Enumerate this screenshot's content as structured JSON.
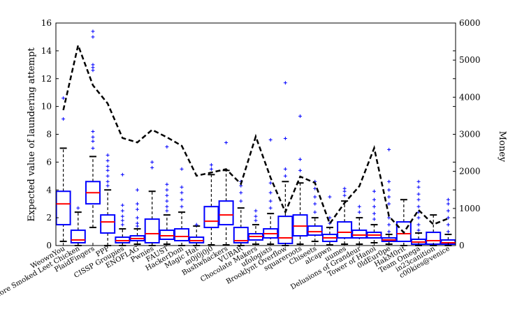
{
  "chart_data": {
    "type": "box",
    "ylabel": "Expected value of laundering attempt",
    "y2label": "Money",
    "ylim": [
      0,
      16
    ],
    "y2lim": [
      0,
      6000
    ],
    "yticks": [
      "0",
      "2",
      "4",
      "6",
      "8",
      "10",
      "12",
      "14",
      "16"
    ],
    "y2ticks": [
      "0",
      "1000",
      "2000",
      "3000",
      "4000",
      "5000",
      "6000"
    ],
    "grid": false,
    "colors": {
      "box": "#0000ff",
      "median": "#ff0000",
      "flier": "#0000ff",
      "whisker": "#000000",
      "money_line": "#000000"
    },
    "categories": [
      "WeownYou",
      "More Smoked Leet Chicken",
      "PlaidFingers",
      "PPP",
      "CISSP Groupies",
      "ENOFLAG",
      "Pwnies",
      "FAUST",
      "HackerDom",
      "Magic Hat",
      "m0j0j0j0",
      "Bushwhackers",
      "VUBAR",
      "Chocolate Makers",
      "ufologists",
      "Brooklynt Overflow",
      "squareroots",
      "Chiseets",
      "alcapwn",
      "uumes",
      "Delusions of Grandeur",
      "Tower of Hanoi",
      "0ldEur0pe",
      "HakM0rit",
      "Team Omega",
      "in23canition",
      "c00kies@venice"
    ],
    "boxes": [
      {
        "q1": 1.5,
        "median": 3.0,
        "q3": 3.9,
        "wlo": 0.3,
        "whi": 7.0,
        "fliers": [
          9.1,
          10.6
        ]
      },
      {
        "q1": 0.2,
        "median": 0.4,
        "q3": 1.1,
        "wlo": 0.0,
        "whi": 2.4,
        "fliers": [
          2.7
        ]
      },
      {
        "q1": 3.0,
        "median": 3.8,
        "q3": 4.6,
        "wlo": 1.3,
        "whi": 6.4,
        "fliers": [
          7.0,
          7.5,
          7.8,
          8.2,
          12.6,
          12.8,
          13.0,
          15.0,
          15.4
        ]
      },
      {
        "q1": 0.9,
        "median": 1.7,
        "q3": 2.2,
        "wlo": 0.0,
        "whi": 4.0,
        "fliers": [
          4.3,
          4.6,
          5.0,
          5.4,
          5.7,
          6.1,
          6.5
        ]
      },
      {
        "q1": 0.2,
        "median": 0.35,
        "q3": 0.6,
        "wlo": 0.0,
        "whi": 1.2,
        "fliers": [
          1.5,
          1.8,
          2.1,
          2.5,
          2.9,
          5.1
        ]
      },
      {
        "q1": 0.35,
        "median": 0.5,
        "q3": 0.7,
        "wlo": 0.1,
        "whi": 1.2,
        "fliers": [
          1.4,
          1.6,
          2.0,
          2.6,
          3.0,
          4.0
        ]
      },
      {
        "q1": 0.2,
        "median": 0.85,
        "q3": 1.9,
        "wlo": 0.0,
        "whi": 3.9,
        "fliers": [
          5.6,
          6.0
        ]
      },
      {
        "q1": 0.45,
        "median": 0.7,
        "q3": 1.1,
        "wlo": 0.1,
        "whi": 2.2,
        "fliers": [
          2.5,
          2.8,
          3.2,
          3.6,
          4.0,
          4.4,
          7.1
        ]
      },
      {
        "q1": 0.35,
        "median": 0.65,
        "q3": 1.2,
        "wlo": 0.0,
        "whi": 2.4,
        "fliers": [
          2.8,
          3.3,
          3.8,
          4.2,
          5.5
        ]
      },
      {
        "q1": 0.2,
        "median": 0.35,
        "q3": 0.6,
        "wlo": 0.0,
        "whi": 1.4,
        "fliers": [
          1.5
        ]
      },
      {
        "q1": 1.3,
        "median": 1.75,
        "q3": 2.8,
        "wlo": 0.05,
        "whi": 5.1,
        "fliers": [
          5.5,
          5.8
        ]
      },
      {
        "q1": 1.5,
        "median": 2.2,
        "q3": 3.2,
        "wlo": 0.05,
        "whi": 5.4,
        "fliers": [
          7.4
        ]
      },
      {
        "q1": 0.2,
        "median": 0.35,
        "q3": 1.3,
        "wlo": 0.0,
        "whi": 2.7,
        "fliers": [
          3.2,
          3.8,
          4.3,
          4.6
        ]
      },
      {
        "q1": 0.4,
        "median": 0.65,
        "q3": 0.85,
        "wlo": 0.1,
        "whi": 1.5,
        "fliers": [
          1.8,
          2.1,
          2.5
        ]
      },
      {
        "q1": 0.55,
        "median": 0.85,
        "q3": 1.2,
        "wlo": 0.1,
        "whi": 2.3,
        "fliers": [
          2.7,
          3.2,
          3.8,
          4.5,
          7.6
        ]
      },
      {
        "q1": 0.15,
        "median": 0.55,
        "q3": 2.1,
        "wlo": 0.0,
        "whi": 4.6,
        "fliers": [
          5.0,
          5.5,
          7.7,
          11.7
        ]
      },
      {
        "q1": 0.7,
        "median": 1.4,
        "q3": 2.2,
        "wlo": 0.1,
        "whi": 4.5,
        "fliers": [
          5.4,
          6.2,
          9.3
        ]
      },
      {
        "q1": 0.75,
        "median": 1.0,
        "q3": 1.4,
        "wlo": 0.3,
        "whi": 2.0,
        "fliers": [
          2.4,
          3.0,
          3.5,
          4.1,
          4.6
        ]
      },
      {
        "q1": 0.3,
        "median": 0.55,
        "q3": 0.8,
        "wlo": 0.05,
        "whi": 1.3,
        "fliers": [
          1.6,
          2.0,
          3.5
        ]
      },
      {
        "q1": 0.55,
        "median": 0.95,
        "q3": 1.7,
        "wlo": 0.1,
        "whi": 3.2,
        "fliers": [
          3.6,
          3.9,
          4.1
        ]
      },
      {
        "q1": 0.55,
        "median": 0.75,
        "q3": 1.1,
        "wlo": 0.1,
        "whi": 2.0,
        "fliers": [
          2.4,
          2.8
        ]
      },
      {
        "q1": 0.55,
        "median": 0.75,
        "q3": 0.95,
        "wlo": 0.2,
        "whi": 1.5,
        "fliers": [
          1.9,
          2.3,
          2.8,
          3.3,
          3.9
        ]
      },
      {
        "q1": 0.3,
        "median": 0.4,
        "q3": 0.55,
        "wlo": 0.1,
        "whi": 0.8,
        "fliers": [
          1.0,
          1.5,
          2.0,
          3.0,
          3.5,
          4.0,
          4.6,
          6.9
        ]
      },
      {
        "q1": 0.3,
        "median": 0.85,
        "q3": 1.7,
        "wlo": 0.0,
        "whi": 3.3,
        "fliers": []
      },
      {
        "q1": 0.1,
        "median": 0.25,
        "q3": 0.45,
        "wlo": 0.0,
        "whi": 0.9,
        "fliers": [
          1.1,
          1.5,
          2.0,
          2.4,
          2.8,
          3.3,
          3.7,
          4.2,
          4.6
        ]
      },
      {
        "q1": 0.1,
        "median": 0.35,
        "q3": 0.95,
        "wlo": 0.0,
        "whi": 2.2,
        "fliers": []
      },
      {
        "q1": 0.1,
        "median": 0.2,
        "q3": 0.4,
        "wlo": 0.0,
        "whi": 0.8,
        "fliers": [
          1.0,
          1.5,
          2.0,
          2.5,
          3.0,
          3.3
        ]
      }
    ],
    "money": [
      3650,
      5400,
      4320,
      3830,
      2900,
      2780,
      3120,
      2920,
      2690,
      1880,
      1970,
      2060,
      1660,
      2940,
      1830,
      900,
      1860,
      1690,
      590,
      1150,
      1600,
      2630,
      790,
      350,
      960,
      570,
      730
    ]
  }
}
